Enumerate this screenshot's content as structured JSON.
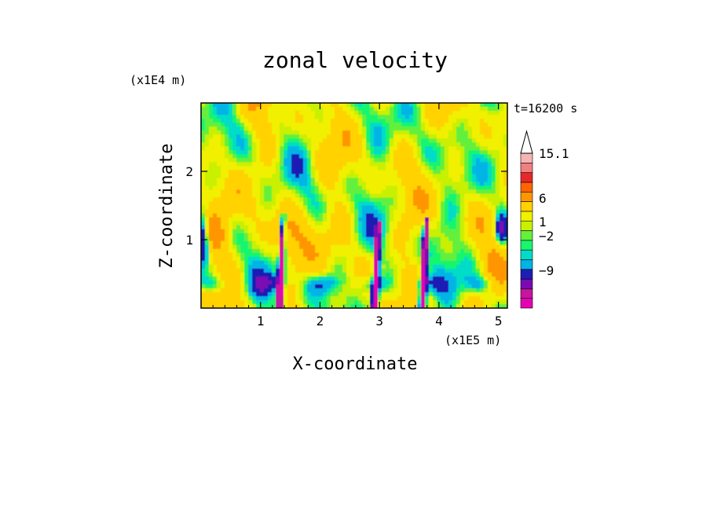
{
  "chart_data": {
    "type": "heatmap",
    "title": "zonal velocity",
    "xlabel": "X-coordinate",
    "ylabel": "Z-coordinate",
    "x_multiplier": "(x1E5 m)",
    "y_multiplier": "(x1E4 m)",
    "time_label": "t=16200 s",
    "xlim": [
      0,
      5.15
    ],
    "ylim": [
      0,
      3.0
    ],
    "x_ticks": [
      1,
      2,
      3,
      4,
      5
    ],
    "y_ticks": [
      1,
      2
    ],
    "colorbar": {
      "levels": [
        -12,
        -9,
        -6,
        -4,
        -2,
        -1,
        -0.5,
        0,
        0.5,
        1,
        2,
        4,
        6,
        9,
        12,
        15.1
      ],
      "colors": [
        "#e600b4",
        "#c814a0",
        "#7a0ab4",
        "#1e1eb4",
        "#00b4e6",
        "#00dcc8",
        "#19f56e",
        "#64f03c",
        "#c8f000",
        "#f0f000",
        "#ffd200",
        "#ff9600",
        "#ff6400",
        "#e62828",
        "#f08080",
        "#f5b4b4"
      ],
      "labels": [
        "15.1",
        "6",
        "1",
        "-2",
        "-9"
      ],
      "extend_max": true
    },
    "field_description": "Contoured zonal velocity field; mostly weak positive/near-zero values with strong negative streaks near x≈1.3, 2.9, 3.7 (x1E5 m) at low altitude."
  }
}
